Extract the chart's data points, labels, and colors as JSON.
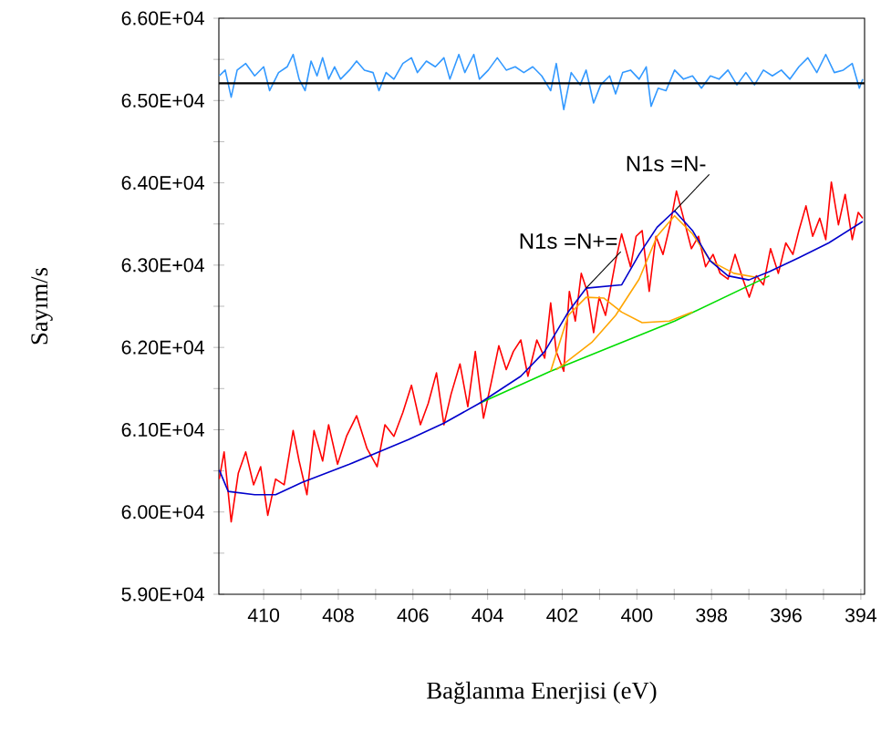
{
  "chart_data": {
    "type": "line",
    "xlabel": "Bağlanma Enerjisi (eV)",
    "ylabel": "Sayım/s",
    "xlim": [
      411.2,
      393.9
    ],
    "ylim": [
      59000,
      66000
    ],
    "xticks": [
      410,
      {
        "value": 409,
        "label": null
      },
      408,
      {
        "value": 407,
        "label": null
      },
      406,
      {
        "value": 405,
        "label": null
      },
      404,
      {
        "value": 403,
        "label": null
      },
      402,
      {
        "value": 401,
        "label": null
      },
      400,
      {
        "value": 399,
        "label": null
      },
      398,
      {
        "value": 397,
        "label": null
      },
      396,
      {
        "value": 395,
        "label": null
      },
      394
    ],
    "yticks": [
      {
        "value": 59000,
        "label": "5.90E+04"
      },
      {
        "value": 59500,
        "label": null
      },
      {
        "value": 60000,
        "label": "6.00E+04"
      },
      {
        "value": 60500,
        "label": null
      },
      {
        "value": 61000,
        "label": "6.10E+04"
      },
      {
        "value": 61500,
        "label": null
      },
      {
        "value": 62000,
        "label": "6.20E+04"
      },
      {
        "value": 62500,
        "label": null
      },
      {
        "value": 63000,
        "label": "6.30E+04"
      },
      {
        "value": 63500,
        "label": null
      },
      {
        "value": 64000,
        "label": "6.40E+04"
      },
      {
        "value": 64500,
        "label": null
      },
      {
        "value": 65000,
        "label": "6.50E+04"
      },
      {
        "value": 65500,
        "label": null
      },
      {
        "value": 66000,
        "label": "6.60E+04"
      }
    ],
    "grid": false,
    "ref_lines": [
      {
        "axis": "y",
        "value": 65210,
        "color": "#000000"
      }
    ],
    "annotations": [
      {
        "text": "N1s =N+=",
        "x": 401.36,
        "y": 62720
      },
      {
        "text": "N1s =N-",
        "x": 398.99,
        "y": 63660
      }
    ],
    "series": [
      {
        "color": "#ff0000",
        "x": [
          411.19,
          411.06,
          410.87,
          410.68,
          410.48,
          410.27,
          410.08,
          409.89,
          409.68,
          409.45,
          409.21,
          409.05,
          408.84,
          408.65,
          408.42,
          408.26,
          408.02,
          407.78,
          407.51,
          407.23,
          406.96,
          406.75,
          406.51,
          406.27,
          406.04,
          405.8,
          405.59,
          405.37,
          405.17,
          404.98,
          404.74,
          404.53,
          404.33,
          404.11,
          403.9,
          403.7,
          403.5,
          403.31,
          403.11,
          402.92,
          402.68,
          402.47,
          402.31,
          402.16,
          401.96,
          401.81,
          401.65,
          401.49,
          401.33,
          401.16,
          401.01,
          400.84,
          400.57,
          400.41,
          400.17,
          400.02,
          399.86,
          399.67,
          399.49,
          399.3,
          399.11,
          398.94,
          398.75,
          398.54,
          398.35,
          398.16,
          397.96,
          397.77,
          397.56,
          397.37,
          397.16,
          396.99,
          396.8,
          396.61,
          396.42,
          396.21,
          396.01,
          395.82,
          395.66,
          395.47,
          395.29,
          395.1,
          394.94,
          394.79,
          394.6,
          394.42,
          394.23,
          394.07,
          393.95
        ],
        "values": [
          60400,
          60730,
          59880,
          60470,
          60730,
          60330,
          60550,
          59960,
          60400,
          60330,
          60990,
          60620,
          60210,
          60990,
          60620,
          61060,
          60580,
          60920,
          61170,
          60770,
          60550,
          61060,
          60920,
          61210,
          61540,
          61060,
          61320,
          61690,
          61060,
          61430,
          61800,
          61280,
          61950,
          61140,
          61580,
          62020,
          61730,
          61950,
          62090,
          61650,
          62090,
          61870,
          62540,
          61950,
          61710,
          62680,
          62320,
          62900,
          62680,
          62180,
          62610,
          62390,
          63050,
          63380,
          62980,
          63350,
          63420,
          62680,
          63350,
          63130,
          63490,
          63900,
          63570,
          63200,
          63350,
          62980,
          63130,
          62900,
          62830,
          63130,
          62830,
          62610,
          62870,
          62760,
          63200,
          62900,
          63270,
          63130,
          63420,
          63720,
          63350,
          63570,
          63310,
          64010,
          63490,
          63860,
          63310,
          63640,
          63570
        ]
      },
      {
        "color": "#00dd00",
        "x": [
          404.22,
          402.31,
          398.99,
          396.45
        ],
        "values": [
          61320,
          61710,
          62320,
          62870
        ]
      },
      {
        "color": "#ffa500",
        "x": [
          402.31,
          401.84,
          401.36,
          400.89,
          400.41,
          399.86,
          399.13,
          398.51
        ],
        "values": [
          61710,
          62390,
          62610,
          62600,
          62430,
          62300,
          62320,
          62430
        ]
      },
      {
        "color": "#ffa500",
        "x": [
          402.16,
          401.21,
          400.57,
          399.94,
          399.46,
          398.99,
          398.51,
          398.03,
          397.4,
          396.77
        ],
        "values": [
          61730,
          62060,
          62390,
          62830,
          63350,
          63600,
          63380,
          63050,
          62900,
          62850
        ]
      },
      {
        "color": "#0000cc",
        "x": [
          411.19,
          410.95,
          410.24,
          409.68,
          408.97,
          407.7,
          406.91,
          406.12,
          405.17,
          404.22,
          403.11,
          402.47,
          401.84,
          401.36,
          400.41,
          399.94,
          399.46,
          398.99,
          398.51,
          398.03,
          397.56,
          397.0,
          396.45,
          395.66,
          394.86,
          393.95
        ],
        "values": [
          60510,
          60250,
          60210,
          60210,
          60360,
          60580,
          60730,
          60880,
          61080,
          61320,
          61650,
          61950,
          62430,
          62720,
          62760,
          63130,
          63460,
          63660,
          63420,
          63050,
          62870,
          62820,
          62920,
          63090,
          63270,
          63530
        ]
      },
      {
        "color": "#3399ff",
        "x": [
          411.19,
          411.03,
          410.87,
          410.71,
          410.48,
          410.24,
          410.0,
          409.84,
          409.6,
          409.37,
          409.21,
          409.05,
          408.89,
          408.73,
          408.57,
          408.42,
          408.26,
          408.1,
          407.94,
          407.7,
          407.51,
          407.3,
          407.07,
          406.91,
          406.72,
          406.51,
          406.27,
          406.04,
          405.88,
          405.64,
          405.4,
          405.17,
          405.01,
          404.77,
          404.61,
          404.37,
          404.22,
          403.98,
          403.74,
          403.5,
          403.26,
          403.03,
          402.79,
          402.55,
          402.31,
          402.16,
          401.96,
          401.76,
          401.52,
          401.36,
          401.16,
          400.97,
          400.73,
          400.57,
          400.38,
          400.17,
          399.94,
          399.75,
          399.62,
          399.43,
          399.22,
          398.99,
          398.75,
          398.51,
          398.27,
          398.03,
          397.8,
          397.56,
          397.32,
          397.08,
          396.85,
          396.61,
          396.37,
          396.13,
          395.9,
          395.66,
          395.42,
          395.18,
          394.94,
          394.71,
          394.47,
          394.23,
          394.04,
          393.95
        ],
        "values": [
          65300,
          65370,
          65040,
          65370,
          65450,
          65300,
          65410,
          65120,
          65340,
          65410,
          65560,
          65260,
          65120,
          65480,
          65300,
          65520,
          65260,
          65410,
          65260,
          65370,
          65480,
          65370,
          65340,
          65120,
          65340,
          65260,
          65450,
          65520,
          65340,
          65480,
          65410,
          65520,
          65260,
          65560,
          65340,
          65560,
          65260,
          65370,
          65520,
          65370,
          65410,
          65340,
          65410,
          65300,
          65120,
          65450,
          64890,
          65340,
          65190,
          65370,
          64970,
          65190,
          65300,
          65080,
          65340,
          65370,
          65260,
          65410,
          64930,
          65150,
          65120,
          65370,
          65260,
          65300,
          65150,
          65300,
          65260,
          65370,
          65190,
          65340,
          65190,
          65370,
          65300,
          65370,
          65260,
          65410,
          65520,
          65340,
          65560,
          65340,
          65370,
          65450,
          65150,
          65260
        ]
      }
    ]
  }
}
